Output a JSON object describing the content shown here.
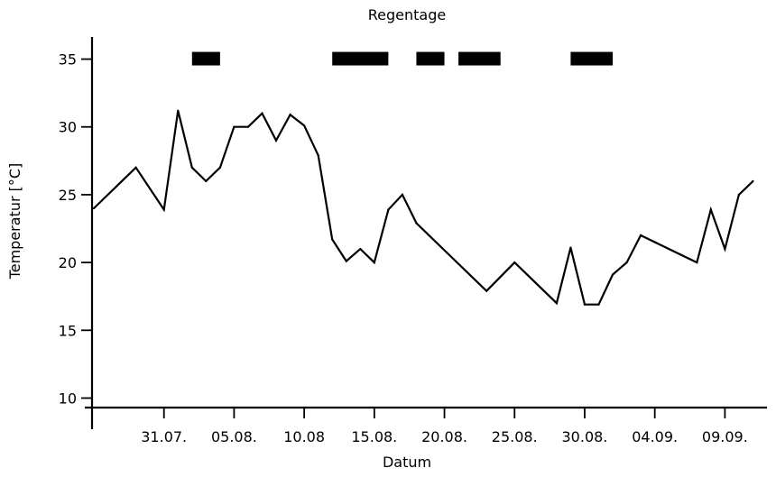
{
  "chart_data": {
    "type": "line",
    "title": "",
    "xlabel": "Datum",
    "ylabel": "Temperatur [°C]",
    "annotation_label": "Regentage",
    "x_unit": "date (day.month)",
    "xlim": [
      "26.07.",
      "12.09."
    ],
    "ylim": [
      9.3,
      36.5
    ],
    "yticks": [
      10,
      15,
      20,
      25,
      30,
      35
    ],
    "xtick_labels": [
      "31.07.",
      "05.08.",
      "10.08",
      "15.08.",
      "20.08.",
      "25.08.",
      "30.08.",
      "04.09.",
      "09.09."
    ],
    "xtick_dates": [
      "31.07.",
      "05.08.",
      "10.08.",
      "15.08.",
      "20.08.",
      "25.08.",
      "30.08.",
      "04.09.",
      "09.09."
    ],
    "grid": false,
    "series": [
      {
        "color": "#000000",
        "points": [
          {
            "x": "26.07.",
            "y": 24
          },
          {
            "x": "29.07.",
            "y": 27
          },
          {
            "x": "31.07.",
            "y": 23.9
          },
          {
            "x": "01.08.",
            "y": 31.2
          },
          {
            "x": "02.08.",
            "y": 27
          },
          {
            "x": "03.08.",
            "y": 26
          },
          {
            "x": "04.08.",
            "y": 27
          },
          {
            "x": "05.08.",
            "y": 30
          },
          {
            "x": "06.08.",
            "y": 30
          },
          {
            "x": "07.08.",
            "y": 31
          },
          {
            "x": "08.08.",
            "y": 29
          },
          {
            "x": "09.08.",
            "y": 30.9
          },
          {
            "x": "10.08.",
            "y": 30.1
          },
          {
            "x": "11.08.",
            "y": 27.9
          },
          {
            "x": "12.08.",
            "y": 21.7
          },
          {
            "x": "13.08.",
            "y": 20.1
          },
          {
            "x": "14.08.",
            "y": 21
          },
          {
            "x": "15.08.",
            "y": 20
          },
          {
            "x": "16.08.",
            "y": 23.9
          },
          {
            "x": "17.08.",
            "y": 25
          },
          {
            "x": "18.08.",
            "y": 22.9
          },
          {
            "x": "23.08.",
            "y": 17.9
          },
          {
            "x": "25.08.",
            "y": 20
          },
          {
            "x": "28.08.",
            "y": 17
          },
          {
            "x": "29.08.",
            "y": 21.1
          },
          {
            "x": "30.08.",
            "y": 16.9
          },
          {
            "x": "31.08.",
            "y": 16.9
          },
          {
            "x": "01.09.",
            "y": 19.1
          },
          {
            "x": "02.09.",
            "y": 20
          },
          {
            "x": "03.09.",
            "y": 22
          },
          {
            "x": "07.09.",
            "y": 20
          },
          {
            "x": "08.09.",
            "y": 23.9
          },
          {
            "x": "09.09.",
            "y": 21
          },
          {
            "x": "10.09.",
            "y": 25
          },
          {
            "x": "11.09.",
            "y": 26
          }
        ]
      }
    ],
    "rain_periods": [
      {
        "start": "02.08.",
        "end": "04.08."
      },
      {
        "start": "12.08.",
        "end": "16.08."
      },
      {
        "start": "18.08.",
        "end": "20.08."
      },
      {
        "start": "21.08.",
        "end": "24.08."
      },
      {
        "start": "29.08.",
        "end": "01.09."
      }
    ]
  }
}
